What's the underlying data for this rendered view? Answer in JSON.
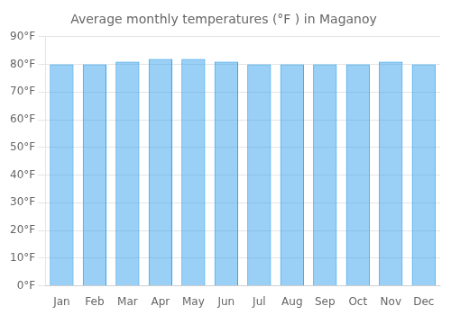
{
  "chart_data": {
    "type": "bar",
    "title": "Average monthly temperatures (°F ) in Maganoy",
    "categories": [
      "Jan",
      "Feb",
      "Mar",
      "Apr",
      "May",
      "Jun",
      "Jul",
      "Aug",
      "Sep",
      "Oct",
      "Nov",
      "Dec"
    ],
    "values": [
      80,
      80,
      81,
      82,
      82,
      81,
      80,
      80,
      80,
      80,
      81,
      80
    ],
    "ylim": [
      0,
      90
    ],
    "yticks": [
      {
        "value": 0,
        "label": "0°F"
      },
      {
        "value": 10,
        "label": "10°F"
      },
      {
        "value": 20,
        "label": "20°F"
      },
      {
        "value": 30,
        "label": "30°F"
      },
      {
        "value": 40,
        "label": "40°F"
      },
      {
        "value": 50,
        "label": "50°F"
      },
      {
        "value": 60,
        "label": "60°F"
      },
      {
        "value": 70,
        "label": "70°F"
      },
      {
        "value": 80,
        "label": "80°F"
      },
      {
        "value": 90,
        "label": "90°F"
      }
    ],
    "grid": true
  }
}
